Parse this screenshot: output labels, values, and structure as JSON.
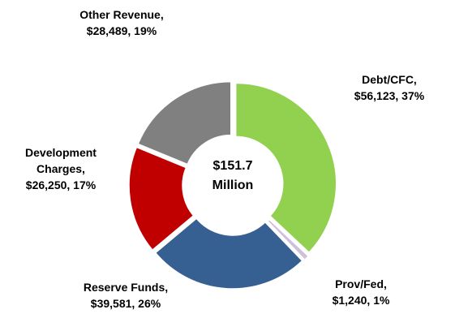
{
  "chart_data": {
    "type": "donut",
    "categories": [
      "Debt/CFC,",
      "Prov/Fed,",
      "Reserve Funds,",
      "Development Charges,",
      "Other Revenue,"
    ],
    "values": [
      56123,
      1240,
      39581,
      26250,
      28489
    ],
    "value_labels": [
      "$56,123,",
      "$1,240,",
      "$39,581,",
      "$26,250,",
      "$28,489,"
    ],
    "percent_labels": [
      "37%",
      "1%",
      "26%",
      "17%",
      "19%"
    ],
    "colors": [
      "#92d050",
      "#ccc0da",
      "#376092",
      "#c00000",
      "#808080"
    ],
    "center_label": "$151.7 Million"
  }
}
